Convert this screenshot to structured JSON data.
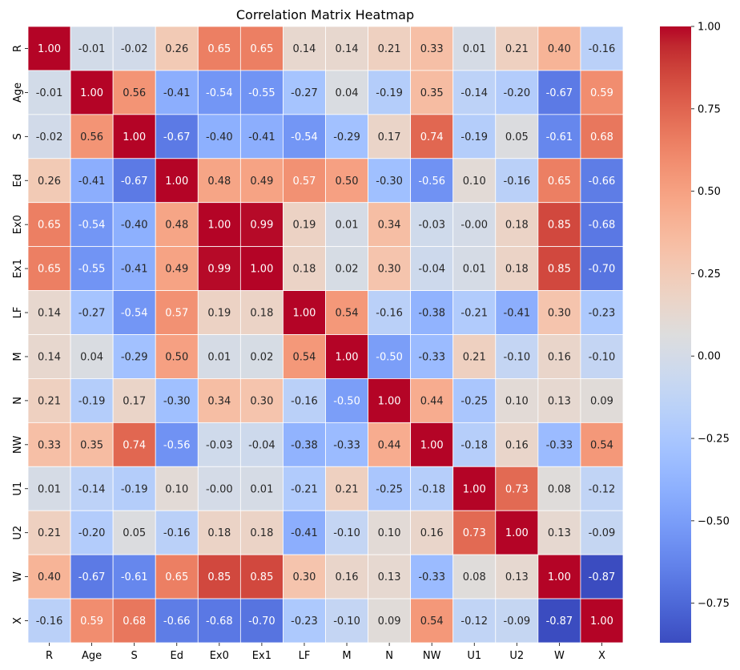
{
  "chart_data": {
    "type": "heatmap",
    "title": "Correlation Matrix Heatmap",
    "xlabel": "",
    "ylabel": "",
    "colormap": "coolwarm",
    "annotated": true,
    "annotation_format": "0.00",
    "grid_line_color": "#ffffff",
    "legend": "colorbar-right",
    "vmin": -0.87,
    "vmax": 1.0,
    "x_labels": [
      "R",
      "Age",
      "S",
      "Ed",
      "Ex0",
      "Ex1",
      "LF",
      "M",
      "N",
      "NW",
      "U1",
      "U2",
      "W",
      "X"
    ],
    "y_labels": [
      "R",
      "Age",
      "S",
      "Ed",
      "Ex0",
      "Ex1",
      "LF",
      "M",
      "N",
      "NW",
      "U1",
      "U2",
      "W",
      "X"
    ],
    "values": [
      [
        1.0,
        -0.01,
        -0.02,
        0.26,
        0.65,
        0.65,
        0.14,
        0.14,
        0.21,
        0.33,
        0.01,
        0.21,
        0.4,
        -0.16
      ],
      [
        -0.01,
        1.0,
        0.56,
        -0.41,
        -0.54,
        -0.55,
        -0.27,
        0.04,
        -0.19,
        0.35,
        -0.14,
        -0.2,
        -0.67,
        0.59
      ],
      [
        -0.02,
        0.56,
        1.0,
        -0.67,
        -0.4,
        -0.41,
        -0.54,
        -0.29,
        0.17,
        0.74,
        -0.19,
        0.05,
        -0.61,
        0.68
      ],
      [
        0.26,
        -0.41,
        -0.67,
        1.0,
        0.48,
        0.49,
        0.57,
        0.5,
        -0.3,
        -0.56,
        0.1,
        -0.16,
        0.65,
        -0.66
      ],
      [
        0.65,
        -0.54,
        -0.4,
        0.48,
        1.0,
        0.99,
        0.19,
        0.01,
        0.34,
        -0.03,
        -0.0,
        0.18,
        0.85,
        -0.68
      ],
      [
        0.65,
        -0.55,
        -0.41,
        0.49,
        0.99,
        1.0,
        0.18,
        0.02,
        0.3,
        -0.04,
        0.01,
        0.18,
        0.85,
        -0.7
      ],
      [
        0.14,
        -0.27,
        -0.54,
        0.57,
        0.19,
        0.18,
        1.0,
        0.54,
        -0.16,
        -0.38,
        -0.21,
        -0.41,
        0.3,
        -0.23
      ],
      [
        0.14,
        0.04,
        -0.29,
        0.5,
        0.01,
        0.02,
        0.54,
        1.0,
        -0.5,
        -0.33,
        0.21,
        -0.1,
        0.16,
        -0.1
      ],
      [
        0.21,
        -0.19,
        0.17,
        -0.3,
        0.34,
        0.3,
        -0.16,
        -0.5,
        1.0,
        0.44,
        -0.25,
        0.1,
        0.13,
        0.09
      ],
      [
        0.33,
        0.35,
        0.74,
        -0.56,
        -0.03,
        -0.04,
        -0.38,
        -0.33,
        0.44,
        1.0,
        -0.18,
        0.16,
        -0.33,
        0.54
      ],
      [
        0.01,
        -0.14,
        -0.19,
        0.1,
        -0.0,
        0.01,
        -0.21,
        0.21,
        -0.25,
        -0.18,
        1.0,
        0.73,
        0.08,
        -0.12
      ],
      [
        0.21,
        -0.2,
        0.05,
        -0.16,
        0.18,
        0.18,
        -0.41,
        -0.1,
        0.1,
        0.16,
        0.73,
        1.0,
        0.13,
        -0.09
      ],
      [
        0.4,
        -0.67,
        -0.61,
        0.65,
        0.85,
        0.85,
        0.3,
        0.16,
        0.13,
        -0.33,
        0.08,
        0.13,
        1.0,
        -0.87
      ],
      [
        -0.16,
        0.59,
        0.68,
        -0.66,
        -0.68,
        -0.7,
        -0.23,
        -0.1,
        0.09,
        0.54,
        -0.12,
        -0.09,
        -0.87,
        1.0
      ]
    ],
    "value_labels": [
      [
        "1.00",
        "-0.01",
        "-0.02",
        "0.26",
        "0.65",
        "0.65",
        "0.14",
        "0.14",
        "0.21",
        "0.33",
        "0.01",
        "0.21",
        "0.40",
        "-0.16"
      ],
      [
        "-0.01",
        "1.00",
        "0.56",
        "-0.41",
        "-0.54",
        "-0.55",
        "-0.27",
        "0.04",
        "-0.19",
        "0.35",
        "-0.14",
        "-0.20",
        "-0.67",
        "0.59"
      ],
      [
        "-0.02",
        "0.56",
        "1.00",
        "-0.67",
        "-0.40",
        "-0.41",
        "-0.54",
        "-0.29",
        "0.17",
        "0.74",
        "-0.19",
        "0.05",
        "-0.61",
        "0.68"
      ],
      [
        "0.26",
        "-0.41",
        "-0.67",
        "1.00",
        "0.48",
        "0.49",
        "0.57",
        "0.50",
        "-0.30",
        "-0.56",
        "0.10",
        "-0.16",
        "0.65",
        "-0.66"
      ],
      [
        "0.65",
        "-0.54",
        "-0.40",
        "0.48",
        "1.00",
        "0.99",
        "0.19",
        "0.01",
        "0.34",
        "-0.03",
        "-0.00",
        "0.18",
        "0.85",
        "-0.68"
      ],
      [
        "0.65",
        "-0.55",
        "-0.41",
        "0.49",
        "0.99",
        "1.00",
        "0.18",
        "0.02",
        "0.30",
        "-0.04",
        "0.01",
        "0.18",
        "0.85",
        "-0.70"
      ],
      [
        "0.14",
        "-0.27",
        "-0.54",
        "0.57",
        "0.19",
        "0.18",
        "1.00",
        "0.54",
        "-0.16",
        "-0.38",
        "-0.21",
        "-0.41",
        "0.30",
        "-0.23"
      ],
      [
        "0.14",
        "0.04",
        "-0.29",
        "0.50",
        "0.01",
        "0.02",
        "0.54",
        "1.00",
        "-0.50",
        "-0.33",
        "0.21",
        "-0.10",
        "0.16",
        "-0.10"
      ],
      [
        "0.21",
        "-0.19",
        "0.17",
        "-0.30",
        "0.34",
        "0.30",
        "-0.16",
        "-0.50",
        "1.00",
        "0.44",
        "-0.25",
        "0.10",
        "0.13",
        "0.09"
      ],
      [
        "0.33",
        "0.35",
        "0.74",
        "-0.56",
        "-0.03",
        "-0.04",
        "-0.38",
        "-0.33",
        "0.44",
        "1.00",
        "-0.18",
        "0.16",
        "-0.33",
        "0.54"
      ],
      [
        "0.01",
        "-0.14",
        "-0.19",
        "0.10",
        "-0.00",
        "0.01",
        "-0.21",
        "0.21",
        "-0.25",
        "-0.18",
        "1.00",
        "0.73",
        "0.08",
        "-0.12"
      ],
      [
        "0.21",
        "-0.20",
        "0.05",
        "-0.16",
        "0.18",
        "0.18",
        "-0.41",
        "-0.10",
        "0.10",
        "0.16",
        "0.73",
        "1.00",
        "0.13",
        "-0.09"
      ],
      [
        "0.40",
        "-0.67",
        "-0.61",
        "0.65",
        "0.85",
        "0.85",
        "0.30",
        "0.16",
        "0.13",
        "-0.33",
        "0.08",
        "0.13",
        "1.00",
        "-0.87"
      ],
      [
        "-0.16",
        "0.59",
        "0.68",
        "-0.66",
        "-0.68",
        "-0.70",
        "-0.23",
        "-0.10",
        "0.09",
        "0.54",
        "-0.12",
        "-0.09",
        "-0.87",
        "1.00"
      ]
    ],
    "colorbar": {
      "ticks": [
        1.0,
        0.75,
        0.5,
        0.25,
        0.0,
        -0.25,
        -0.5,
        -0.75
      ],
      "tick_labels": [
        "1.00",
        "0.75",
        "0.50",
        "0.25",
        "0.00",
        "−0.25",
        "−0.50",
        "−0.75"
      ]
    }
  }
}
